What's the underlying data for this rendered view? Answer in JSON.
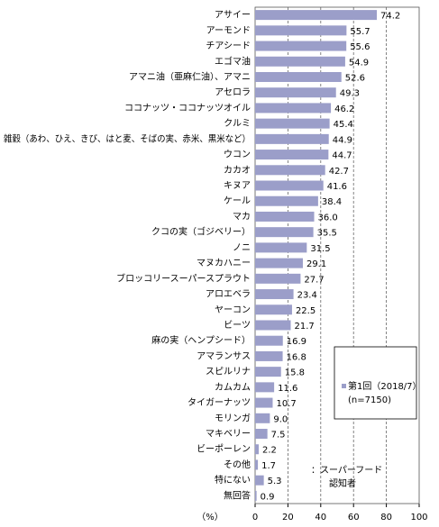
{
  "chart_data": {
    "type": "barh",
    "categories": [
      "アサイー",
      "アーモンド",
      "チアシード",
      "エゴマ油",
      "アマニ油（亜麻仁油）、アマニ",
      "アセロラ",
      "ココナッツ・ココナッツオイル",
      "クルミ",
      "雑穀（あわ、ひえ、きび、はと麦、そばの実、赤米、黒米など）",
      "ウコン",
      "カカオ",
      "キヌア",
      "ケール",
      "マカ",
      "クコの実（ゴジベリー）",
      "ノニ",
      "マヌカハニー",
      "ブロッコリースーパースプラウト",
      "アロエベラ",
      "ヤーコン",
      "ビーツ",
      "麻の実（ヘンプシード）",
      "アマランサス",
      "スピルリナ",
      "カムカム",
      "タイガーナッツ",
      "モリンガ",
      "マキベリー",
      "ビーポーレン",
      "その他",
      "特にない",
      "無回答"
    ],
    "series": [
      {
        "name": "第1回（2018/7）",
        "color": "#9b9ec9",
        "values": [
          74.2,
          55.7,
          55.6,
          54.9,
          52.6,
          49.3,
          46.2,
          45.4,
          44.9,
          44.7,
          42.7,
          41.6,
          38.4,
          36.0,
          35.5,
          31.5,
          29.1,
          27.7,
          23.4,
          22.5,
          21.7,
          16.9,
          16.8,
          15.8,
          11.6,
          10.7,
          9.0,
          7.5,
          2.2,
          1.7,
          5.3,
          0.9
        ],
        "value_labels": [
          "74.2",
          "55.7",
          "55.6",
          "54.9",
          "52.6",
          "49.3",
          "46.2",
          "45.4",
          "44.9",
          "44.7",
          "42.7",
          "41.6",
          "38.4",
          "36.0",
          "35.5",
          "31.5",
          "29.1",
          "27.7",
          "23.4",
          "22.5",
          "21.7",
          "16.9",
          "16.8",
          "15.8",
          "11.6",
          "10.7",
          "9.0",
          "7.5",
          "2.2",
          "1.7",
          "5.3",
          "0.9"
        ]
      }
    ],
    "legend_note": "(n=7150)",
    "annotation": [
      "：スーパーフード",
      "認知者"
    ],
    "x_label": "（%）",
    "xlim": [
      0,
      100
    ],
    "xticks": [
      0,
      20,
      40,
      60,
      80,
      100
    ],
    "grid": true
  }
}
